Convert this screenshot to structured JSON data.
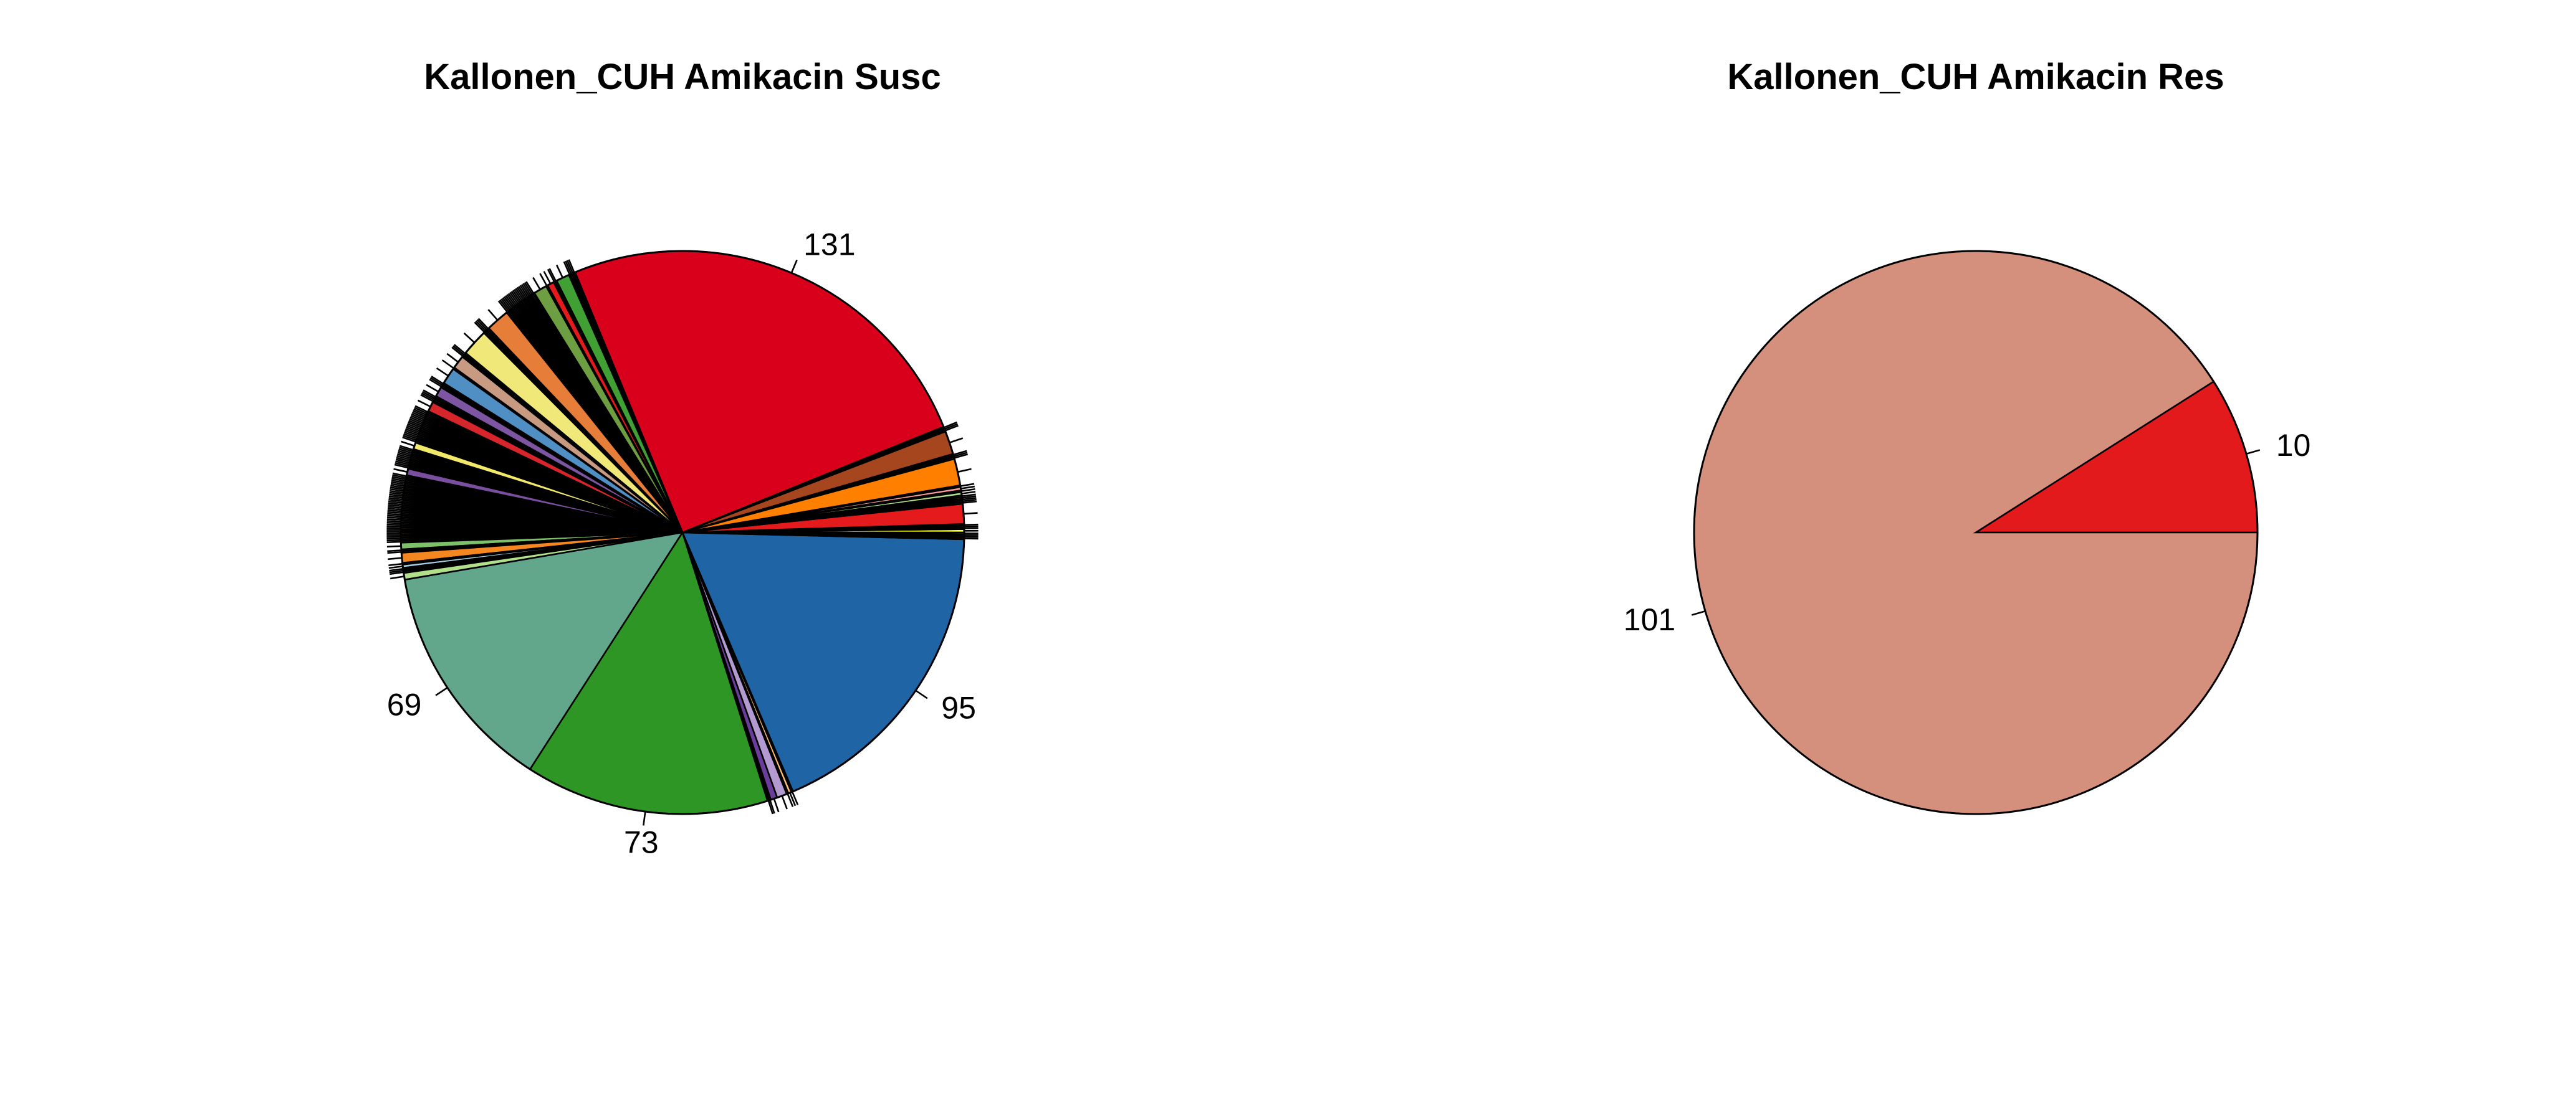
{
  "chart_data": [
    {
      "type": "pie",
      "title": "Kallonen_CUH Amikacin Susc",
      "labeled_values": [
        131,
        73,
        69,
        95
      ],
      "slices": [
        {
          "value": 1.0,
          "color": "#FFFF33"
        },
        {
          "value": 0.5,
          "color": "#A65628"
        },
        {
          "value": 0.5,
          "color": "#E41A1C"
        },
        {
          "value": 0.5,
          "color": "#377EB8"
        },
        {
          "value": 6.0,
          "color": "#E41A1C"
        },
        {
          "value": 0.5,
          "color": "#4DAF4A"
        },
        {
          "value": 0.5,
          "color": "#984EA3"
        },
        {
          "value": 0.5,
          "color": "#FF7F00"
        },
        {
          "value": 0.5,
          "color": "#FFFF33"
        },
        {
          "value": 0.5,
          "color": "#F781BF"
        },
        {
          "value": 1.0,
          "color": "#B2DF8A"
        },
        {
          "value": 0.5,
          "color": "#984EA3"
        },
        {
          "value": 1.0,
          "color": "#FB9A99"
        },
        {
          "value": 0.5,
          "color": "#6A3D9A"
        },
        {
          "value": 8.0,
          "color": "#FF7F00"
        },
        {
          "value": 0.5,
          "color": "#FFFF33"
        },
        {
          "value": 0.5,
          "color": "#1F78B4"
        },
        {
          "value": 0.5,
          "color": "#E31A1C"
        },
        {
          "value": 7.0,
          "color": "#A6461F"
        },
        {
          "value": 0.5,
          "color": "#33A02C"
        },
        {
          "value": 0.5,
          "color": "#FDBF6F"
        },
        {
          "value": 0.5,
          "color": "#CAB2D6"
        },
        {
          "value": 131,
          "color": "#D9001B"
        },
        {
          "value": 0.5,
          "color": "#FFFF33"
        },
        {
          "value": 0.5,
          "color": "#A6CEE3"
        },
        {
          "value": 0.5,
          "color": "#FB9A99"
        },
        {
          "value": 0.5,
          "color": "#4DAF4A"
        },
        {
          "value": 4.0,
          "color": "#41A034"
        },
        {
          "value": 0.5,
          "color": "#B2DF8A"
        },
        {
          "value": 0.5,
          "color": "#FF7F00"
        },
        {
          "value": 2.0,
          "color": "#E41A1C"
        },
        {
          "value": 0.5,
          "color": "#377EB8"
        },
        {
          "value": 4.0,
          "color": "#6E9E42"
        },
        {
          "value": 0.5,
          "color": "#984EA3"
        },
        {
          "value": 0.5,
          "color": "#A6CEE3"
        },
        {
          "value": 0.5,
          "color": "#E7298A"
        },
        {
          "value": 0.5,
          "color": "#66A61E"
        },
        {
          "value": 0.5,
          "color": "#E6AB02"
        },
        {
          "value": 0.5,
          "color": "#7570B3"
        },
        {
          "value": 0.5,
          "color": "#D95F02"
        },
        {
          "value": 0.5,
          "color": "#1B9E77"
        },
        {
          "value": 0.5,
          "color": "#A6761D"
        },
        {
          "value": 0.5,
          "color": "#666666"
        },
        {
          "value": 0.5,
          "color": "#E41A1C"
        },
        {
          "value": 0.5,
          "color": "#377EB8"
        },
        {
          "value": 0.5,
          "color": "#4DAF4A"
        },
        {
          "value": 0.5,
          "color": "#984EA3"
        },
        {
          "value": 0.5,
          "color": "#FF7F00"
        },
        {
          "value": 0.5,
          "color": "#A65628"
        },
        {
          "value": 0.5,
          "color": "#F781BF"
        },
        {
          "value": 0.5,
          "color": "#66C2A5"
        },
        {
          "value": 0.5,
          "color": "#FC8D62"
        },
        {
          "value": 0.5,
          "color": "#8DA0CB"
        },
        {
          "value": 7.0,
          "color": "#E67E3A"
        },
        {
          "value": 0.5,
          "color": "#1F78B4"
        },
        {
          "value": 0.5,
          "color": "#33A02C"
        },
        {
          "value": 0.5,
          "color": "#FFFF33"
        },
        {
          "value": 0.5,
          "color": "#CAB2D6"
        },
        {
          "value": 8.0,
          "color": "#F0E97A"
        },
        {
          "value": 0.5,
          "color": "#6A3D9A"
        },
        {
          "value": 0.5,
          "color": "#B15928"
        },
        {
          "value": 0.5,
          "color": "#FB9A99"
        },
        {
          "value": 4.0,
          "color": "#C99A82"
        },
        {
          "value": 0.5,
          "color": "#E31A1C"
        },
        {
          "value": 5.0,
          "color": "#4F8FC4"
        },
        {
          "value": 0.5,
          "color": "#FDBF6F"
        },
        {
          "value": 0.5,
          "color": "#A6CEE3"
        },
        {
          "value": 0.5,
          "color": "#B2DF8A"
        },
        {
          "value": 3.0,
          "color": "#7E55A3"
        },
        {
          "value": 0.5,
          "color": "#FF7F00"
        },
        {
          "value": 0.5,
          "color": "#4DAF4A"
        },
        {
          "value": 0.5,
          "color": "#F781BF"
        },
        {
          "value": 0.5,
          "color": "#984EA3"
        },
        {
          "value": 3.0,
          "color": "#D7262B"
        },
        {
          "value": 0.5,
          "color": "#66C2A5"
        },
        {
          "value": 0.5,
          "color": "#FC8D62"
        },
        {
          "value": 0.5,
          "color": "#8DA0CB"
        },
        {
          "value": 0.5,
          "color": "#E78AC3"
        },
        {
          "value": 0.5,
          "color": "#A6D854"
        },
        {
          "value": 0.5,
          "color": "#FFD92F"
        },
        {
          "value": 0.5,
          "color": "#E5C494"
        },
        {
          "value": 0.5,
          "color": "#B3B3B3"
        },
        {
          "value": 0.5,
          "color": "#8DD3C7"
        },
        {
          "value": 0.5,
          "color": "#FFFFB3"
        },
        {
          "value": 0.5,
          "color": "#BEBADA"
        },
        {
          "value": 0.5,
          "color": "#FB8072"
        },
        {
          "value": 0.5,
          "color": "#80B1D3"
        },
        {
          "value": 0.5,
          "color": "#FDB462"
        },
        {
          "value": 0.5,
          "color": "#B3DE69"
        },
        {
          "value": 0.5,
          "color": "#FCCDE5"
        },
        {
          "value": 0.5,
          "color": "#D9D9D9"
        },
        {
          "value": 0.5,
          "color": "#BC80BD"
        },
        {
          "value": 0.5,
          "color": "#CCEBC5"
        },
        {
          "value": 0.5,
          "color": "#FFED6F"
        },
        {
          "value": 2.0,
          "color": "#F2E96B"
        },
        {
          "value": 0.5,
          "color": "#E41A1C"
        },
        {
          "value": 0.5,
          "color": "#377EB8"
        },
        {
          "value": 0.5,
          "color": "#4DAF4A"
        },
        {
          "value": 0.5,
          "color": "#984EA3"
        },
        {
          "value": 0.5,
          "color": "#FF7F00"
        },
        {
          "value": 0.5,
          "color": "#FFFF33"
        },
        {
          "value": 0.5,
          "color": "#A65628"
        },
        {
          "value": 0.5,
          "color": "#F781BF"
        },
        {
          "value": 0.5,
          "color": "#999999"
        },
        {
          "value": 0.5,
          "color": "#1B9E77"
        },
        {
          "value": 0.5,
          "color": "#D95F02"
        },
        {
          "value": 0.5,
          "color": "#7570B3"
        },
        {
          "value": 2.0,
          "color": "#7B4FA0"
        },
        {
          "value": 0.5,
          "color": "#E7298A"
        },
        {
          "value": 0.5,
          "color": "#66A61E"
        },
        {
          "value": 0.5,
          "color": "#E6AB02"
        },
        {
          "value": 0.5,
          "color": "#A6761D"
        },
        {
          "value": 0.5,
          "color": "#666666"
        },
        {
          "value": 0.5,
          "color": "#A6CEE3"
        },
        {
          "value": 0.5,
          "color": "#1F78B4"
        },
        {
          "value": 0.5,
          "color": "#B2DF8A"
        },
        {
          "value": 0.5,
          "color": "#33A02C"
        },
        {
          "value": 0.5,
          "color": "#FB9A99"
        },
        {
          "value": 0.5,
          "color": "#E31A1C"
        },
        {
          "value": 0.5,
          "color": "#FDBF6F"
        },
        {
          "value": 0.5,
          "color": "#FF7F00"
        },
        {
          "value": 0.5,
          "color": "#CAB2D6"
        },
        {
          "value": 0.5,
          "color": "#6A3D9A"
        },
        {
          "value": 0.5,
          "color": "#FFFF99"
        },
        {
          "value": 0.5,
          "color": "#B15928"
        },
        {
          "value": 0.5,
          "color": "#66C2A5"
        },
        {
          "value": 0.5,
          "color": "#FC8D62"
        },
        {
          "value": 0.5,
          "color": "#8DA0CB"
        },
        {
          "value": 0.5,
          "color": "#E78AC3"
        },
        {
          "value": 0.5,
          "color": "#A6D854"
        },
        {
          "value": 0.5,
          "color": "#FFD92F"
        },
        {
          "value": 0.5,
          "color": "#E5C494"
        },
        {
          "value": 0.5,
          "color": "#B3B3B3"
        },
        {
          "value": 0.5,
          "color": "#8DD3C7"
        },
        {
          "value": 0.5,
          "color": "#BEBADA"
        },
        {
          "value": 0.5,
          "color": "#FB8072"
        },
        {
          "value": 0.5,
          "color": "#80B1D3"
        },
        {
          "value": 0.5,
          "color": "#FDB462"
        },
        {
          "value": 0.5,
          "color": "#B3DE69"
        },
        {
          "value": 0.5,
          "color": "#FCCDE5"
        },
        {
          "value": 0.5,
          "color": "#BC80BD"
        },
        {
          "value": 0.5,
          "color": "#CCEBC5"
        },
        {
          "value": 0.5,
          "color": "#FFED6F"
        },
        {
          "value": 0.5,
          "color": "#E41A1C"
        },
        {
          "value": 0.5,
          "color": "#377EB8"
        },
        {
          "value": 0.5,
          "color": "#4DAF4A"
        },
        {
          "value": 0.5,
          "color": "#984EA3"
        },
        {
          "value": 0.5,
          "color": "#FF7F00"
        },
        {
          "value": 2.0,
          "color": "#7CC06A"
        },
        {
          "value": 0.5,
          "color": "#A65628"
        },
        {
          "value": 0.5,
          "color": "#F781BF"
        },
        {
          "value": 3.0,
          "color": "#F58720"
        },
        {
          "value": 0.5,
          "color": "#1F78B4"
        },
        {
          "value": 1.0,
          "color": "#A6CEE3"
        },
        {
          "value": 0.5,
          "color": "#33A02C"
        },
        {
          "value": 0.5,
          "color": "#E31A1C"
        },
        {
          "value": 0.5,
          "color": "#FDBF6F"
        },
        {
          "value": 2.0,
          "color": "#B2DF8A"
        },
        {
          "value": 69,
          "color": "#62A68C"
        },
        {
          "value": 73,
          "color": "#2E9624"
        },
        {
          "value": 0.5,
          "color": "#E31A1C"
        },
        {
          "value": 0.5,
          "color": "#B15928"
        },
        {
          "value": 2.0,
          "color": "#6A3D9A"
        },
        {
          "value": 3.0,
          "color": "#B39AD1"
        },
        {
          "value": 0.5,
          "color": "#CAB2D6"
        },
        {
          "value": 1.0,
          "color": "#FDBF6F"
        },
        {
          "value": 0.5,
          "color": "#A6761D"
        },
        {
          "value": 95,
          "color": "#1F64A5"
        },
        {
          "value": 0.5,
          "color": "#FF7F00"
        },
        {
          "value": 0.5,
          "color": "#E41A1C"
        },
        {
          "value": 0.5,
          "color": "#B15928"
        },
        {
          "value": 0.5,
          "color": "#FFFF99"
        }
      ]
    },
    {
      "type": "pie",
      "title": "Kallonen_CUH Amikacin Res",
      "slices": [
        {
          "value": 10,
          "color": "#E31A1C",
          "label": "10"
        },
        {
          "value": 101,
          "color": "#D4907C",
          "label": "101"
        }
      ]
    }
  ]
}
